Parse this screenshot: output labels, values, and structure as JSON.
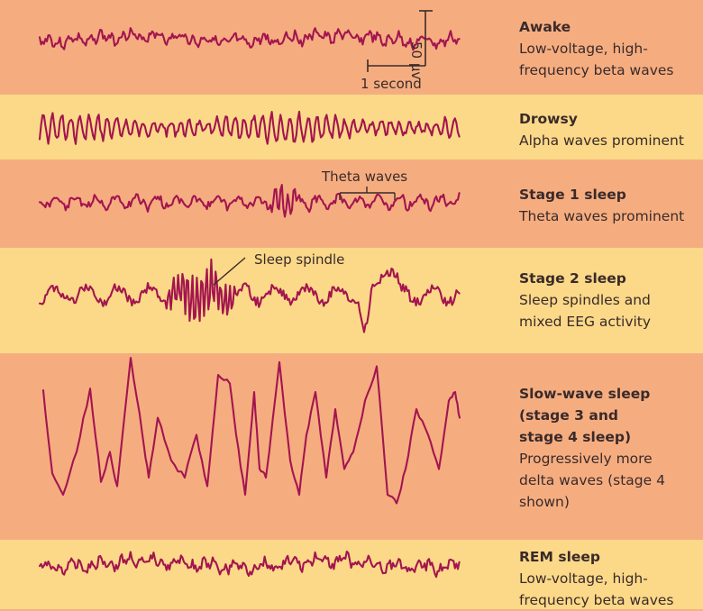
{
  "stages": [
    {
      "id": "awake",
      "title": "Awake",
      "description": "Low-voltage, high-\nfrequency beta waves",
      "wave": {
        "type": "beta",
        "amplitude": 1.0,
        "seed": 3
      }
    },
    {
      "id": "drowsy",
      "title": "Drowsy",
      "description": "Alpha waves prominent",
      "wave": {
        "type": "alpha",
        "amplitude": 1.6,
        "seed": 7
      }
    },
    {
      "id": "stage1",
      "title": "Stage 1 sleep",
      "description": "Theta waves prominent",
      "wave": {
        "type": "theta",
        "amplitude": 1.4,
        "seed": 11
      }
    },
    {
      "id": "stage2",
      "title": "Stage 2 sleep",
      "description": "Sleep spindles and\nmixed EEG activity",
      "wave": {
        "type": "spindle",
        "amplitude": 2.2,
        "seed": 19
      }
    },
    {
      "id": "sws",
      "title": "Slow-wave sleep\n(stage 3 and\nstage 4 sleep)",
      "description": "Progressively more\ndelta waves (stage 4\nshown)",
      "wave": {
        "type": "delta",
        "amplitude": 9.0,
        "seed": 23
      }
    },
    {
      "id": "rem",
      "title": "REM sleep",
      "description": "Low-voltage, high-\nfrequency beta waves",
      "wave": {
        "type": "beta",
        "amplitude": 1.1,
        "seed": 31
      }
    }
  ],
  "scale": {
    "voltage": "50 µv",
    "time": "1 second"
  },
  "annotations": {
    "theta": "Theta waves",
    "spindle": "Sleep spindle"
  },
  "colors": {
    "trace": "#a3154f",
    "salmon": "#f5ad80",
    "yellow": "#fbd988"
  }
}
